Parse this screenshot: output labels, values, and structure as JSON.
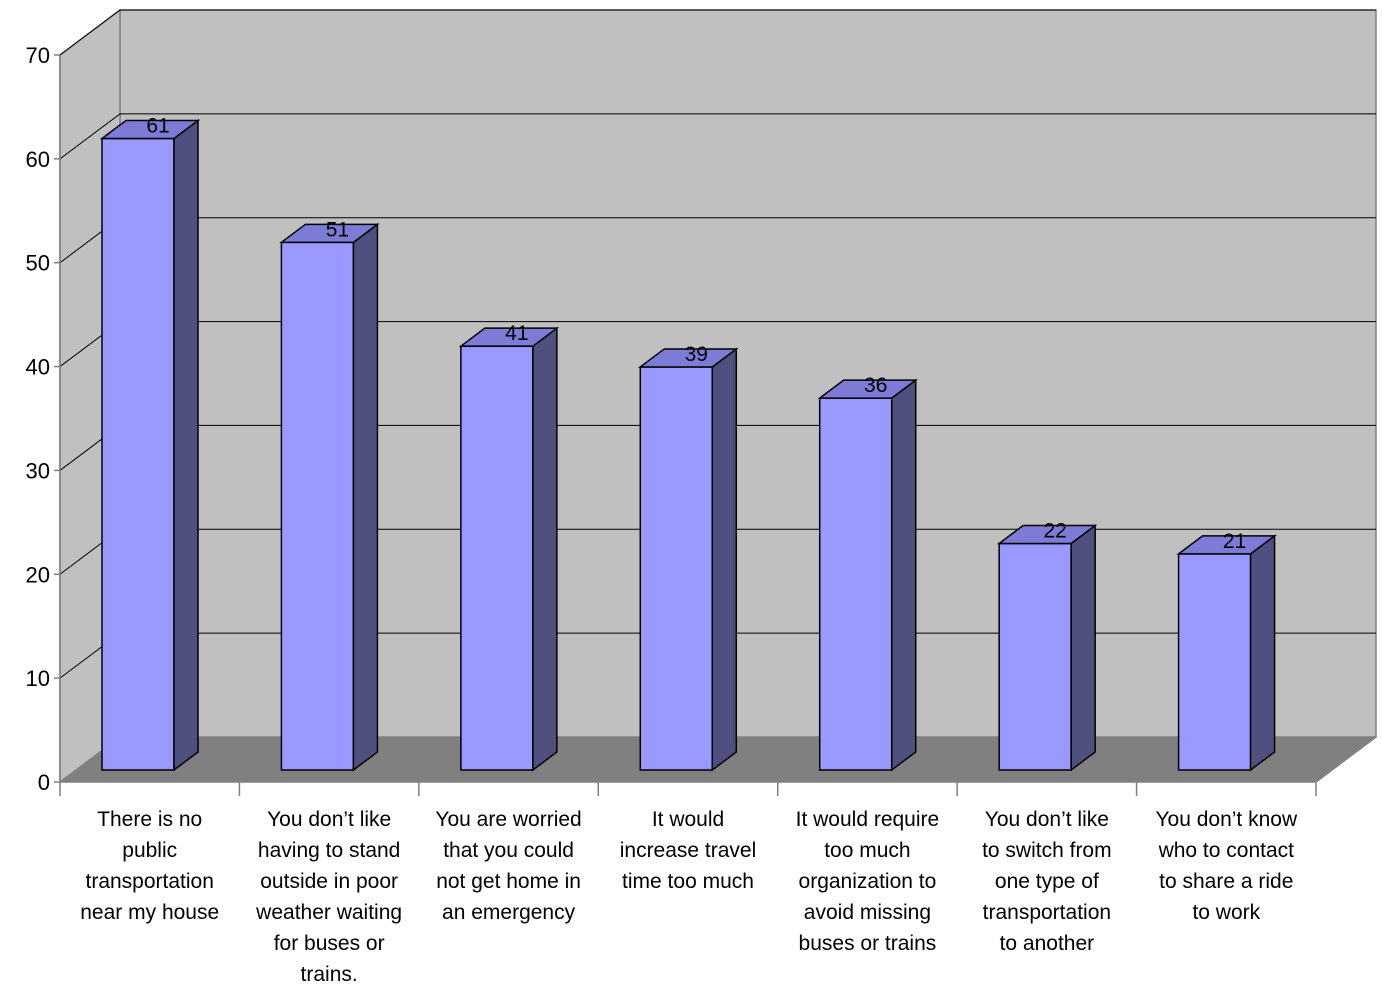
{
  "chart_data": {
    "type": "bar",
    "title": "",
    "xlabel": "",
    "ylabel": "",
    "ylim": [
      0,
      70
    ],
    "yticks": [
      0,
      10,
      20,
      30,
      40,
      50,
      60,
      70
    ],
    "grid": true,
    "three_d": true,
    "categories": [
      [
        "There is no",
        "public",
        "transportation",
        "near my house"
      ],
      [
        "You don’t like",
        "having to stand",
        "outside in poor",
        "weather waiting",
        "for buses or",
        "trains."
      ],
      [
        "You are worried",
        "that you could",
        "not get home in",
        "an emergency"
      ],
      [
        "It would",
        "increase travel",
        "time too much"
      ],
      [
        "It would require",
        "too much",
        "organization to",
        "avoid missing",
        "buses or trains"
      ],
      [
        "You don’t like",
        "to switch from",
        "one type  of",
        "transportation",
        "to another"
      ],
      [
        "You don’t know",
        "who to contact",
        "to share a ride",
        "to work"
      ]
    ],
    "values": [
      61,
      51,
      41,
      39,
      36,
      22,
      21
    ],
    "value_labels": [
      "61",
      "51",
      "41",
      "39",
      "36",
      "22",
      "21"
    ],
    "colors": {
      "bar_front": "#9999ff",
      "bar_side": "#4f4f80",
      "bar_top": "#7c7cd6",
      "back_wall": "#c0c0c0",
      "side_wall": "#c0c0c0",
      "floor": "#808080",
      "gridline": "#000000"
    }
  }
}
